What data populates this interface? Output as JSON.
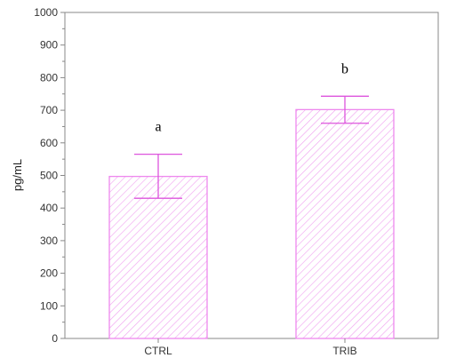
{
  "chart_data": {
    "type": "bar",
    "title": "",
    "xlabel": "",
    "ylabel": "pg/mL",
    "categories": [
      "CTRL",
      "TRIB"
    ],
    "values": [
      497,
      702
    ],
    "error": [
      [
        430,
        565
      ],
      [
        660,
        743
      ]
    ],
    "significance_labels": [
      "a",
      "b"
    ],
    "ylim": [
      0,
      1000
    ],
    "yticks": [
      0,
      100,
      200,
      300,
      400,
      500,
      600,
      700,
      800,
      900,
      1000
    ],
    "ytick_labels": [
      "0",
      "100",
      "200",
      "300",
      "400",
      "500",
      "600",
      "700",
      "800",
      "900",
      "1000"
    ],
    "grid": false,
    "legend": "none",
    "colors": {
      "bar_stroke": "#ee88ee",
      "bar_hatch": "#f0a0f0",
      "error_bar": "#dd55dd",
      "axis": "#888888"
    }
  }
}
